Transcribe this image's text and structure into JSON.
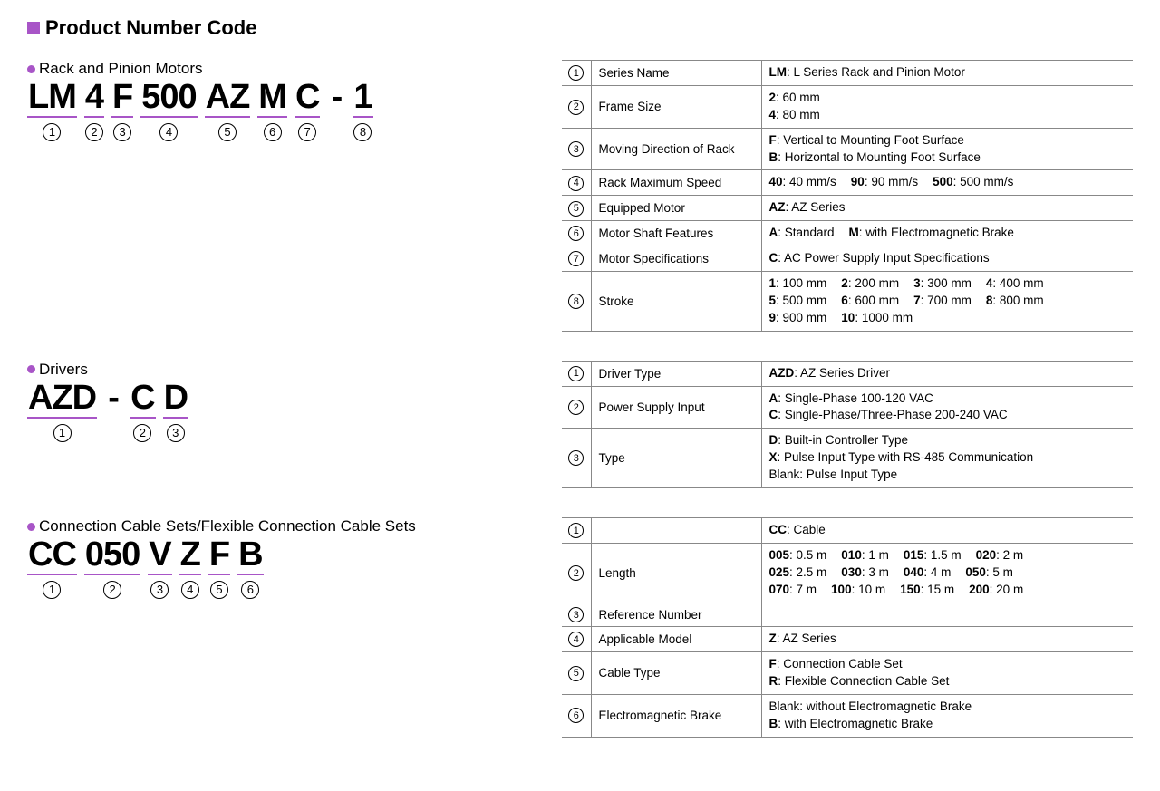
{
  "colors": {
    "accent": "#a855c7",
    "border": "#888888",
    "text": "#000000",
    "bg": "#ffffff"
  },
  "mainTitle": "Product Number Code",
  "sections": [
    {
      "subtitle": "Rack and Pinion Motors",
      "codeParts": [
        {
          "text": "LM",
          "num": "1"
        },
        {
          "text": "4",
          "num": "2"
        },
        {
          "text": "F",
          "num": "3"
        },
        {
          "text": "500",
          "num": "4"
        },
        {
          "text": "AZ",
          "num": "5"
        },
        {
          "text": "M",
          "num": "6"
        },
        {
          "text": "C",
          "num": "7"
        },
        {
          "text": "-",
          "dash": true
        },
        {
          "text": "1",
          "num": "8"
        }
      ],
      "rows": [
        {
          "num": "1",
          "label": "Series Name",
          "vals": [
            [
              {
                "b": "LM",
                "t": ": L Series Rack and Pinion Motor"
              }
            ]
          ]
        },
        {
          "num": "2",
          "label": "Frame Size",
          "vals": [
            [
              {
                "b": "2",
                "t": ": 60 mm"
              }
            ],
            [
              {
                "b": "4",
                "t": ": 80 mm"
              }
            ]
          ]
        },
        {
          "num": "3",
          "label": "Moving Direction of Rack",
          "vals": [
            [
              {
                "b": "F",
                "t": ": Vertical to Mounting Foot Surface"
              }
            ],
            [
              {
                "b": "B",
                "t": ": Horizontal to Mounting Foot Surface"
              }
            ]
          ]
        },
        {
          "num": "4",
          "label": "Rack Maximum Speed",
          "vals": [
            [
              {
                "b": "40",
                "t": ": 40 mm/s"
              },
              {
                "b": "90",
                "t": ": 90 mm/s"
              },
              {
                "b": "500",
                "t": ": 500 mm/s"
              }
            ]
          ]
        },
        {
          "num": "5",
          "label": "Equipped Motor",
          "vals": [
            [
              {
                "b": "AZ",
                "t": ": AZ Series"
              }
            ]
          ]
        },
        {
          "num": "6",
          "label": "Motor Shaft Features",
          "vals": [
            [
              {
                "b": "A",
                "t": ": Standard"
              },
              {
                "b": "M",
                "t": ": with Electromagnetic Brake"
              }
            ]
          ]
        },
        {
          "num": "7",
          "label": "Motor Specifications",
          "vals": [
            [
              {
                "b": "C",
                "t": ": AC Power Supply Input Specifications"
              }
            ]
          ]
        },
        {
          "num": "8",
          "label": "Stroke",
          "vals": [
            [
              {
                "b": "1",
                "t": ": 100 mm"
              },
              {
                "b": "2",
                "t": ": 200 mm"
              },
              {
                "b": "3",
                "t": ": 300 mm"
              },
              {
                "b": "4",
                "t": ": 400 mm"
              }
            ],
            [
              {
                "b": "5",
                "t": ": 500 mm"
              },
              {
                "b": "6",
                "t": ": 600 mm"
              },
              {
                "b": "7",
                "t": ": 700 mm"
              },
              {
                "b": "8",
                "t": ": 800 mm"
              }
            ],
            [
              {
                "b": "9",
                "t": ": 900 mm"
              },
              {
                "b": "10",
                "t": ": 1000 mm"
              }
            ]
          ]
        }
      ]
    },
    {
      "subtitle": "Drivers",
      "codeParts": [
        {
          "text": "AZD",
          "num": "1"
        },
        {
          "text": "-",
          "dash": true
        },
        {
          "text": "C",
          "num": "2"
        },
        {
          "text": "D",
          "num": "3"
        }
      ],
      "rows": [
        {
          "num": "1",
          "label": "Driver Type",
          "vals": [
            [
              {
                "b": "AZD",
                "t": ": AZ Series Driver"
              }
            ]
          ]
        },
        {
          "num": "2",
          "label": "Power Supply Input",
          "vals": [
            [
              {
                "b": "A",
                "t": ": Single-Phase 100-120 VAC"
              }
            ],
            [
              {
                "b": "C",
                "t": ": Single-Phase/Three-Phase 200-240 VAC"
              }
            ]
          ]
        },
        {
          "num": "3",
          "label": "Type",
          "vals": [
            [
              {
                "b": "D",
                "t": ": Built-in Controller Type"
              }
            ],
            [
              {
                "b": "X",
                "t": ": Pulse Input Type with RS-485 Communication"
              }
            ],
            [
              {
                "b": "",
                "t": "Blank: Pulse Input Type"
              }
            ]
          ]
        }
      ]
    },
    {
      "subtitle": "Connection Cable Sets/Flexible Connection Cable Sets",
      "codeParts": [
        {
          "text": "CC",
          "num": "1"
        },
        {
          "text": "050",
          "num": "2"
        },
        {
          "text": "V",
          "num": "3"
        },
        {
          "text": "Z",
          "num": "4"
        },
        {
          "text": "F",
          "num": "5"
        },
        {
          "text": "B",
          "num": "6"
        }
      ],
      "rows": [
        {
          "num": "1",
          "label": "",
          "vals": [
            [
              {
                "b": "CC",
                "t": ": Cable"
              }
            ]
          ]
        },
        {
          "num": "2",
          "label": "Length",
          "vals": [
            [
              {
                "b": "005",
                "t": ": 0.5 m"
              },
              {
                "b": "010",
                "t": ": 1 m"
              },
              {
                "b": "015",
                "t": ": 1.5 m"
              },
              {
                "b": "020",
                "t": ": 2 m"
              }
            ],
            [
              {
                "b": "025",
                "t": ": 2.5 m"
              },
              {
                "b": "030",
                "t": ": 3 m"
              },
              {
                "b": "040",
                "t": ": 4 m"
              },
              {
                "b": "050",
                "t": ": 5 m"
              }
            ],
            [
              {
                "b": "070",
                "t": ": 7 m"
              },
              {
                "b": "100",
                "t": ": 10 m"
              },
              {
                "b": "150",
                "t": ": 15 m"
              },
              {
                "b": "200",
                "t": ": 20 m"
              }
            ]
          ]
        },
        {
          "num": "3",
          "label": "Reference Number",
          "vals": [
            []
          ]
        },
        {
          "num": "4",
          "label": "Applicable Model",
          "vals": [
            [
              {
                "b": "Z",
                "t": ": AZ Series"
              }
            ]
          ]
        },
        {
          "num": "5",
          "label": "Cable Type",
          "vals": [
            [
              {
                "b": "F",
                "t": ": Connection Cable Set"
              }
            ],
            [
              {
                "b": "R",
                "t": ": Flexible Connection Cable Set"
              }
            ]
          ]
        },
        {
          "num": "6",
          "label": "Electromagnetic Brake",
          "vals": [
            [
              {
                "b": "",
                "t": "Blank: without Electromagnetic Brake"
              }
            ],
            [
              {
                "b": "B",
                "t": ": with Electromagnetic Brake"
              }
            ]
          ]
        }
      ]
    }
  ]
}
